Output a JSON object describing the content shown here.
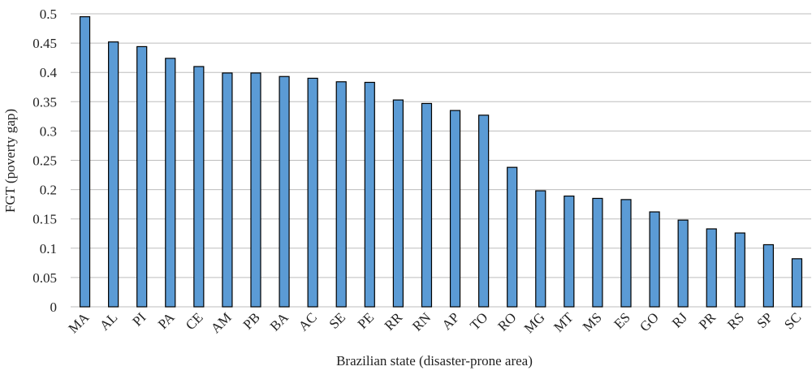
{
  "chart_data": {
    "type": "bar",
    "x_label": "Brazilian state (disaster-prone area)",
    "y_label": "FGT (poverty gap)",
    "categories": [
      "MA",
      "AL",
      "PI",
      "PA",
      "CE",
      "AM",
      "PB",
      "BA",
      "AC",
      "SE",
      "PE",
      "RR",
      "RN",
      "AP",
      "TO",
      "RO",
      "MG",
      "MT",
      "MS",
      "ES",
      "GO",
      "RJ",
      "PR",
      "RS",
      "SP",
      "SC"
    ],
    "values": [
      0.495,
      0.452,
      0.444,
      0.424,
      0.41,
      0.399,
      0.399,
      0.393,
      0.39,
      0.384,
      0.383,
      0.353,
      0.347,
      0.335,
      0.327,
      0.238,
      0.198,
      0.189,
      0.185,
      0.183,
      0.162,
      0.148,
      0.133,
      0.126,
      0.106,
      0.082
    ],
    "color": "#5b9bd5",
    "ylim": [
      0,
      0.5
    ],
    "yticks": [
      0,
      0.05,
      0.1,
      0.15,
      0.2,
      0.25,
      0.3,
      0.35,
      0.4,
      0.45,
      0.5
    ],
    "grid": true
  }
}
